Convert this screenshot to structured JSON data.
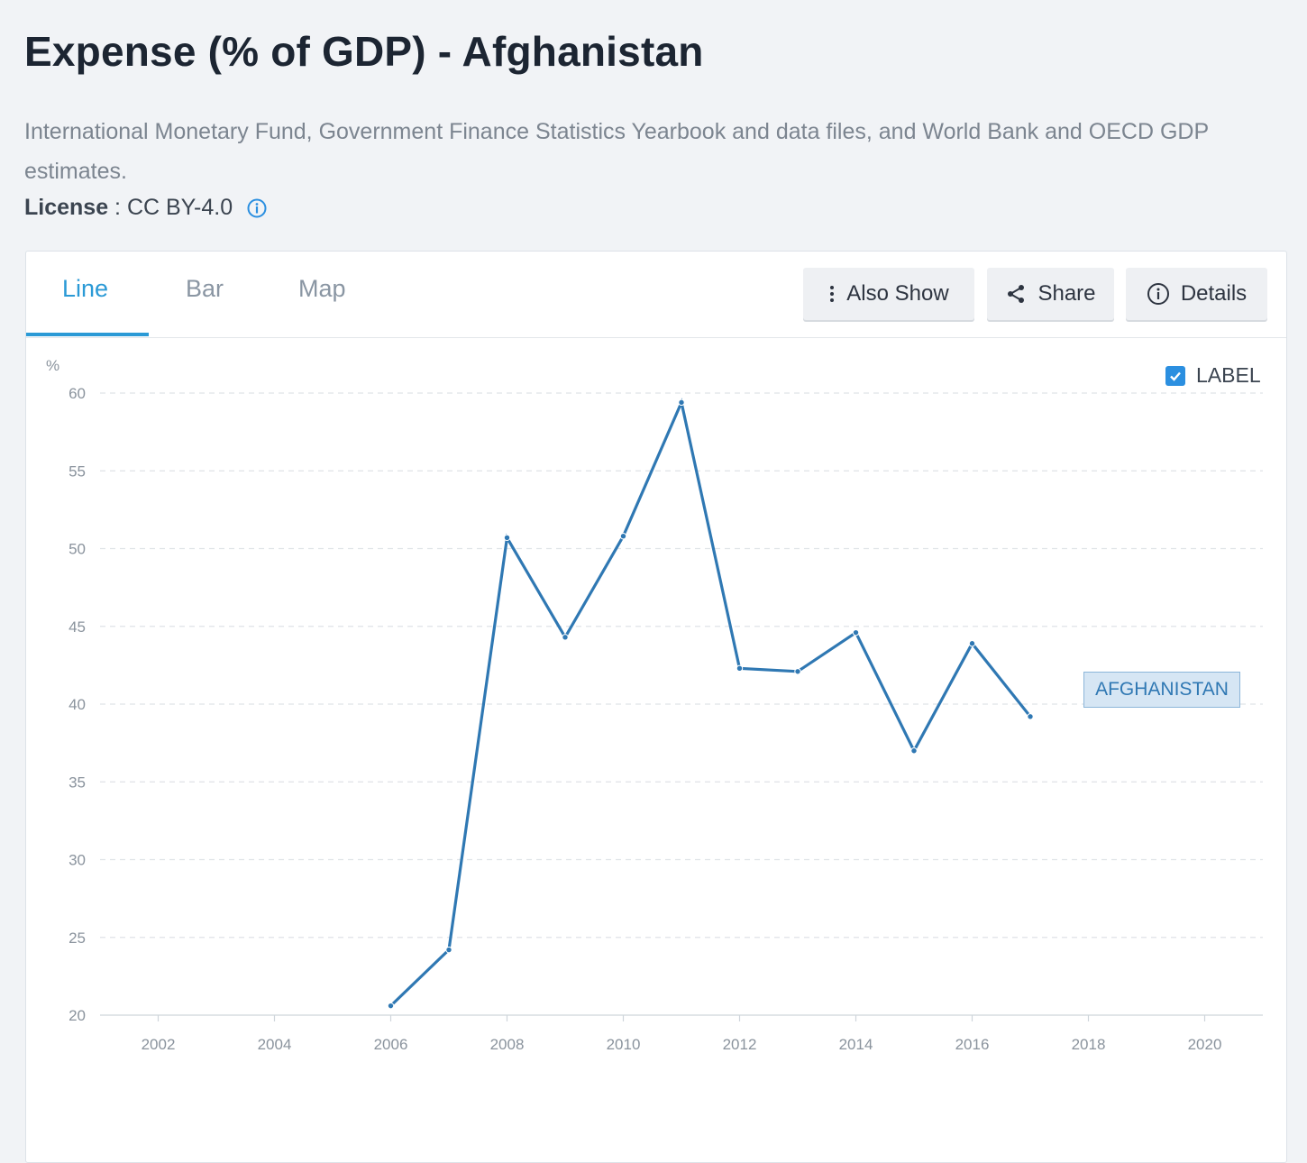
{
  "page": {
    "title": "Expense (% of GDP) - Afghanistan",
    "source": "International Monetary Fund, Government Finance Statistics Yearbook and data files, and World Bank and OECD GDP estimates.",
    "license_label": "License",
    "license_sep": " : ",
    "license_value": "CC BY-4.0"
  },
  "tabs": [
    {
      "label": "Line",
      "active": true
    },
    {
      "label": "Bar",
      "active": false
    },
    {
      "label": "Map",
      "active": false
    }
  ],
  "buttons": {
    "also_show": "Also Show",
    "share": "Share",
    "details": "Details"
  },
  "label_toggle": {
    "text": "LABEL",
    "checked": true
  },
  "colors": {
    "accent": "#2b9ad6",
    "series": "#2f78b3",
    "checkbox": "#2b8fe0"
  },
  "chart_data": {
    "type": "line",
    "title": "",
    "xlabel": "",
    "ylabel": "%",
    "xlim": [
      2001,
      2021
    ],
    "ylim": [
      20,
      60
    ],
    "yticks": [
      20,
      25,
      30,
      35,
      40,
      45,
      50,
      55,
      60
    ],
    "xticks": [
      2002,
      2004,
      2006,
      2008,
      2010,
      2012,
      2014,
      2016,
      2018,
      2020
    ],
    "grid": true,
    "series": [
      {
        "name": "AFGHANISTAN",
        "x": [
          2006,
          2007,
          2008,
          2009,
          2010,
          2011,
          2012,
          2013,
          2014,
          2015,
          2016,
          2017
        ],
        "y": [
          20.6,
          24.2,
          50.7,
          44.3,
          50.8,
          59.4,
          42.3,
          42.1,
          44.6,
          37.0,
          43.9,
          39.2
        ]
      }
    ]
  }
}
